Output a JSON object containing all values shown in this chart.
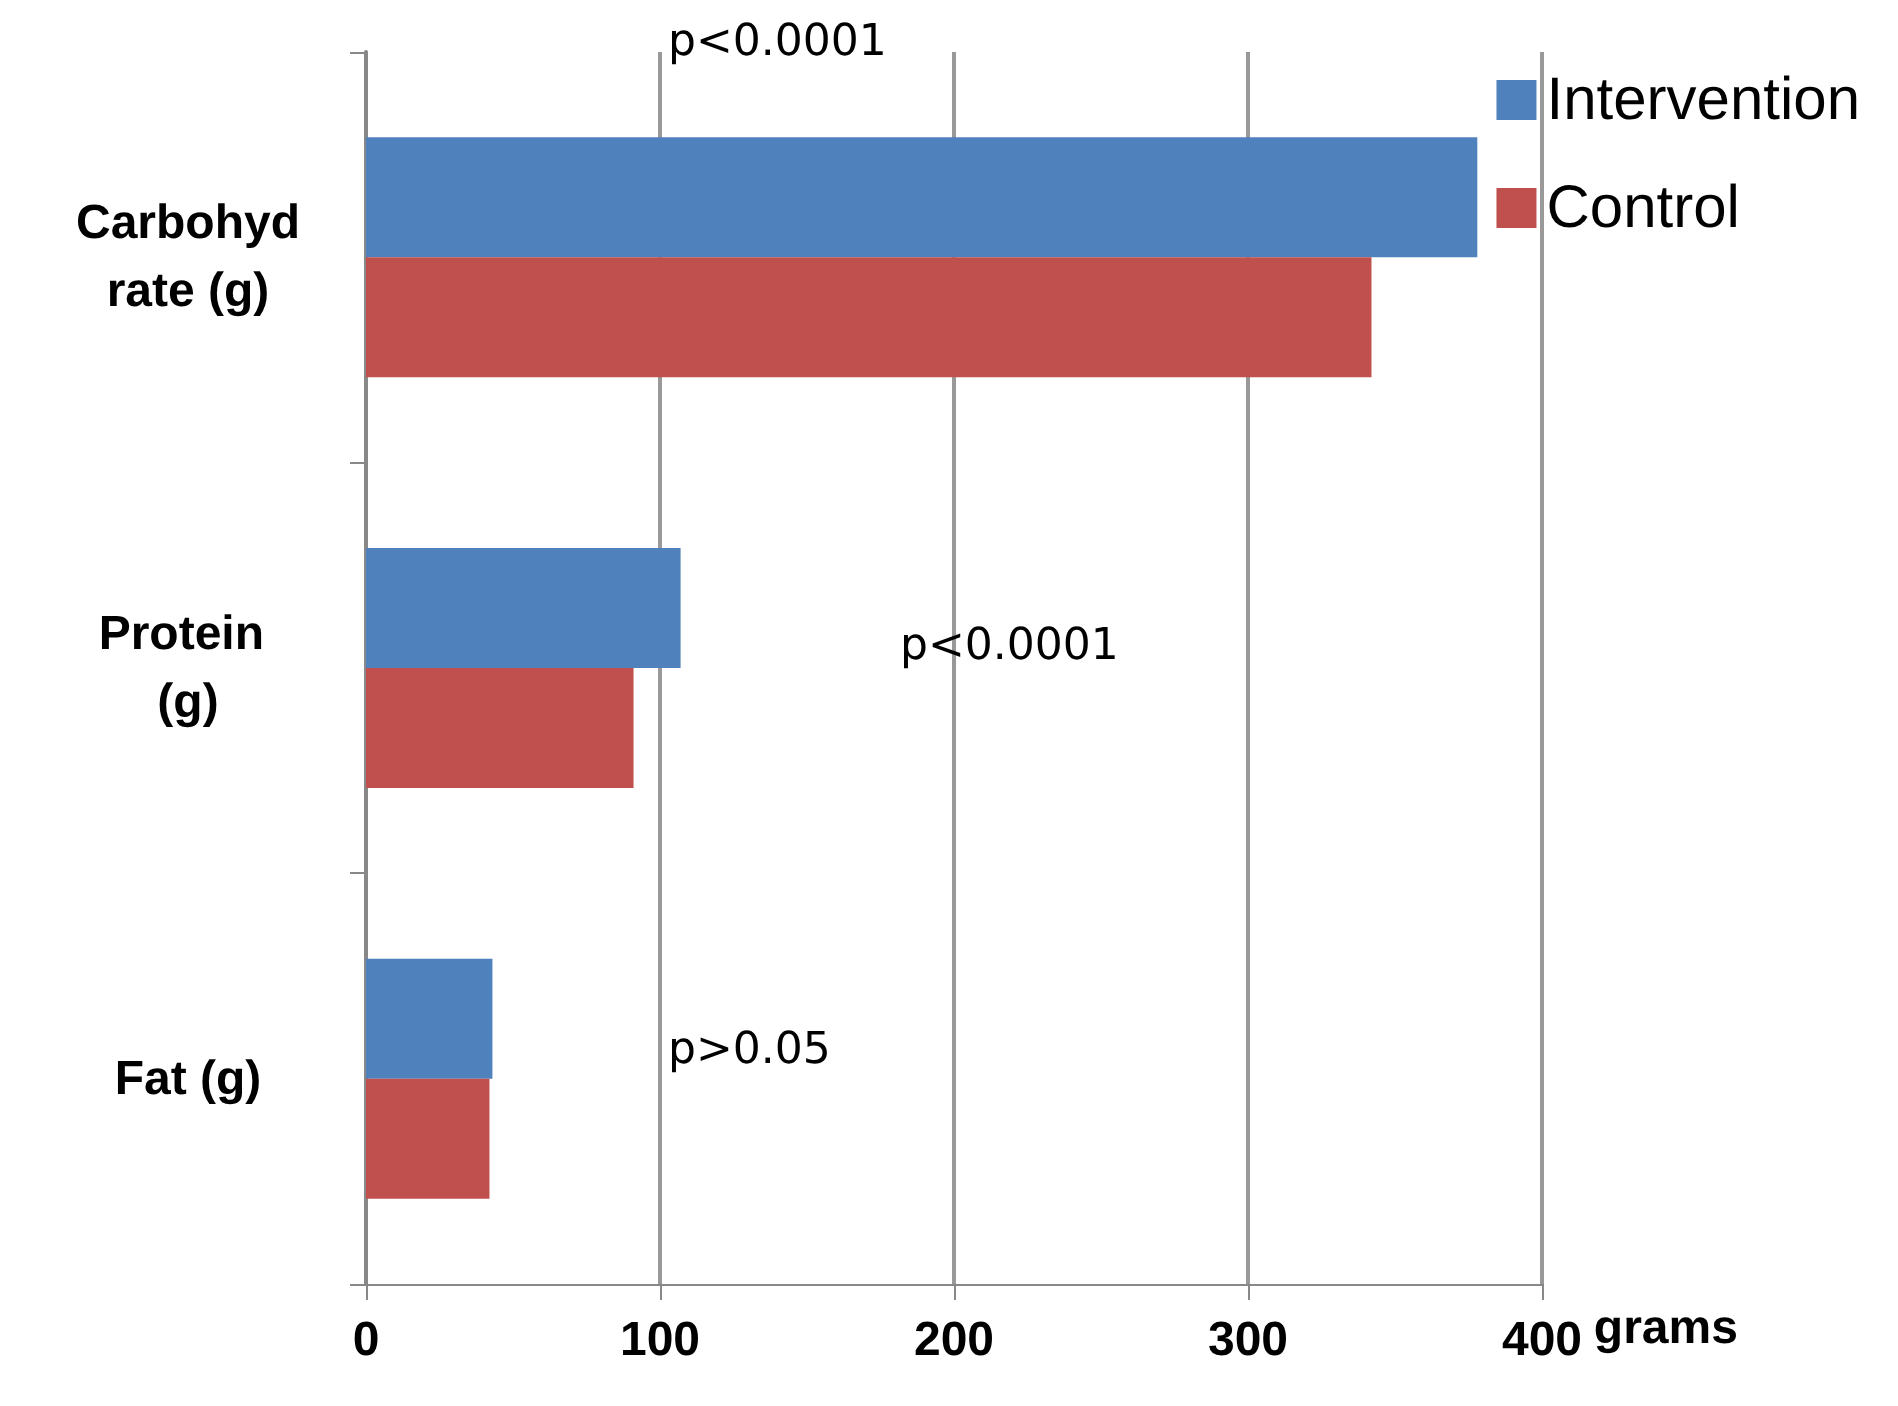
{
  "chart_data": {
    "type": "bar",
    "orientation": "horizontal",
    "categories": [
      "Carbohydrate (g)",
      "Protein (g)",
      "Fat (g)"
    ],
    "series": [
      {
        "name": "Intervention",
        "color": "#4f81bd",
        "values": [
          378,
          107,
          43
        ]
      },
      {
        "name": "Control",
        "color": "#c0504d",
        "values": [
          342,
          91,
          42
        ]
      }
    ],
    "xlabel": "grams",
    "xlim": [
      0,
      400
    ],
    "xticks": [
      0,
      100,
      200,
      300,
      400
    ],
    "grid": "x",
    "legend": "top right",
    "annotations": [
      "p<0.0001",
      "p<0.0001",
      "p>0.05"
    ]
  }
}
